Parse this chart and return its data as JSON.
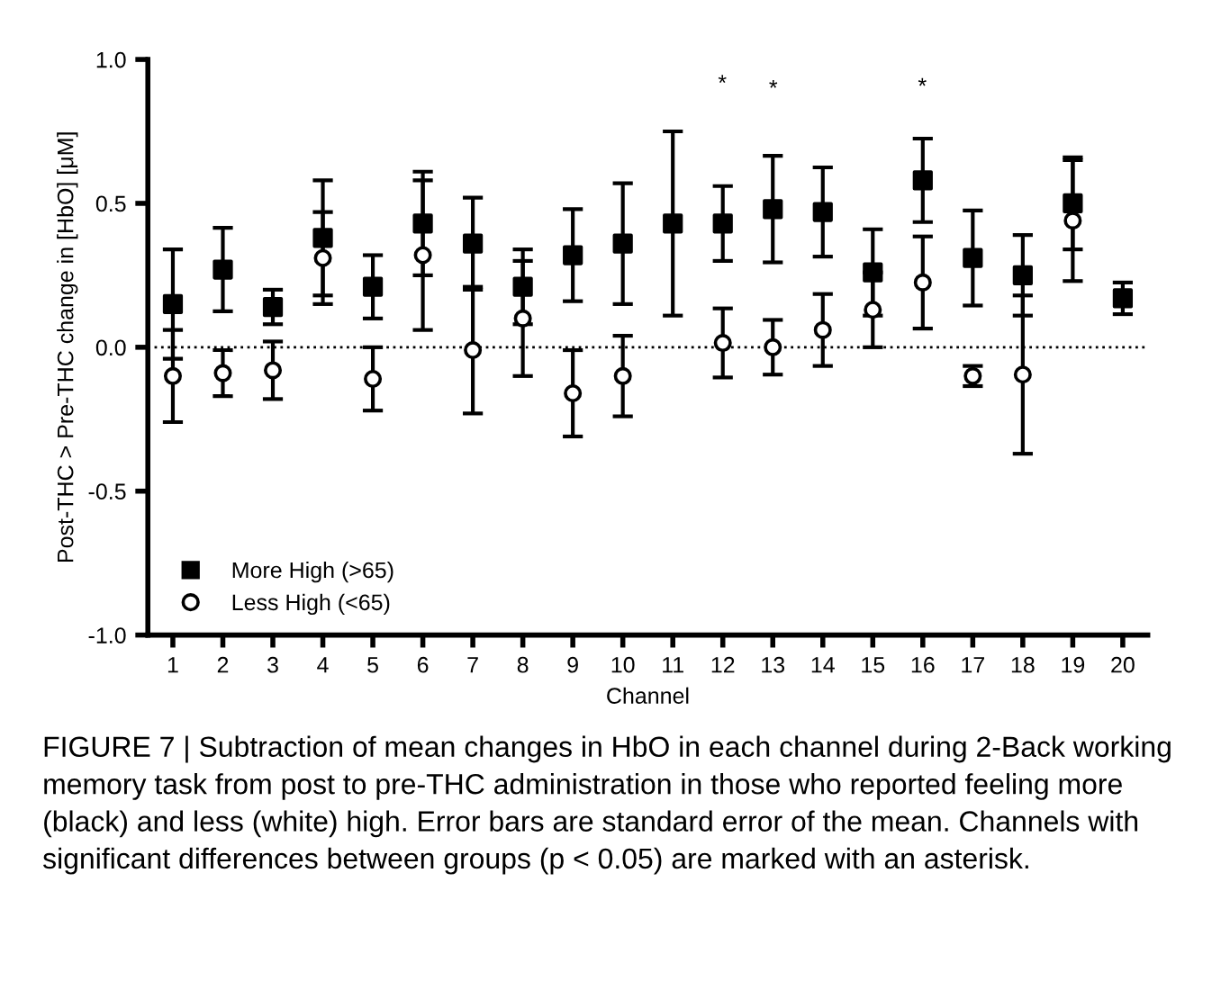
{
  "chart_data": {
    "type": "scatter",
    "xlabel": "Channel",
    "ylabel": "Post-THC > Pre-THC change in [HbO] [μM]",
    "categories": [
      "1",
      "2",
      "3",
      "4",
      "5",
      "6",
      "7",
      "8",
      "9",
      "10",
      "11",
      "12",
      "13",
      "14",
      "15",
      "16",
      "17",
      "18",
      "19",
      "20"
    ],
    "series": [
      {
        "name": "More High (>65)",
        "color": "#000000",
        "marker": "square",
        "values": [
          0.15,
          0.27,
          0.14,
          0.38,
          0.21,
          0.43,
          0.36,
          0.21,
          0.32,
          0.36,
          0.43,
          0.43,
          0.48,
          0.47,
          0.26,
          0.58,
          0.31,
          0.25,
          0.5,
          0.17
        ],
        "errors": [
          0.19,
          0.145,
          0.06,
          0.2,
          0.11,
          0.18,
          0.16,
          0.13,
          0.16,
          0.21,
          0.32,
          0.13,
          0.185,
          0.155,
          0.15,
          0.145,
          0.165,
          0.14,
          0.16,
          0.055
        ]
      },
      {
        "name": "Less High (<65)",
        "color": "#000000",
        "marker": "circle",
        "values": [
          -0.1,
          -0.09,
          -0.08,
          0.31,
          -0.11,
          0.32,
          -0.01,
          0.1,
          -0.16,
          -0.1,
          null,
          0.015,
          0.0,
          0.06,
          0.13,
          0.225,
          -0.1,
          -0.095,
          0.44,
          null
        ],
        "errors": [
          0.16,
          0.08,
          0.1,
          0.16,
          0.11,
          0.26,
          0.22,
          0.2,
          0.15,
          0.14,
          null,
          0.12,
          0.095,
          0.125,
          0.13,
          0.16,
          0.035,
          0.275,
          0.21,
          null
        ]
      }
    ],
    "ylim": [
      -1.0,
      1.0
    ],
    "yticks": [
      {
        "value": -1.0,
        "label": "-1.0"
      },
      {
        "value": -0.5,
        "label": "-0.5"
      },
      {
        "value": 0.0,
        "label": "0.0"
      },
      {
        "value": 0.5,
        "label": "0.5"
      },
      {
        "value": 1.0,
        "label": "1.0"
      }
    ],
    "ref_lines": [
      {
        "axis": "y",
        "value": 0.0,
        "line_style": "dotted",
        "color": "#000000"
      }
    ],
    "grid": false,
    "legend": "bottom left",
    "annotations": [
      "*",
      "*",
      "*",
      "FIGURE 7 | Subtraction of mean changes in HbO in each channel during 2-Back working memory task from post to pre-THC administration in those who reported feeling more (black) and less (white) high. Error bars are standard error of the mean. Channels with significant differences between groups (p < 0.05) are marked with an asterisk."
    ]
  }
}
